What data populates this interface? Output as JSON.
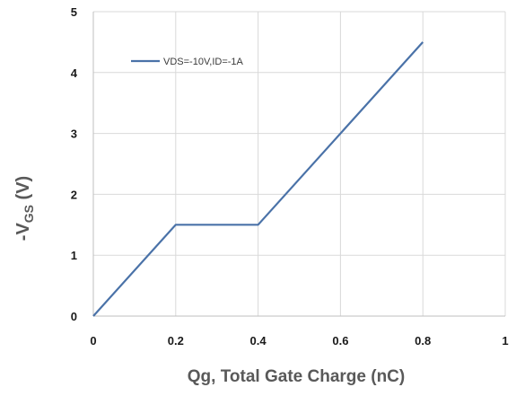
{
  "chart_data": {
    "type": "line",
    "xlabel": "Qg, Total Gate Charge (nC)",
    "ylabel": {
      "prefix": "-V",
      "subscript": "GS",
      "suffix": " (V)"
    },
    "xlim": [
      0,
      1
    ],
    "ylim": [
      0,
      5
    ],
    "x_ticks": [
      "0",
      "0.2",
      "0.4",
      "0.6",
      "0.8",
      "1"
    ],
    "y_ticks": [
      "0",
      "1",
      "2",
      "3",
      "4",
      "5"
    ],
    "grid": true,
    "legend_position": "top-left",
    "series": [
      {
        "name": "VDS=-10V,ID=-1A",
        "color": "#4a72a8",
        "x": [
          0,
          0.2,
          0.4,
          0.8
        ],
        "y": [
          0,
          1.5,
          1.5,
          4.5
        ]
      }
    ]
  }
}
